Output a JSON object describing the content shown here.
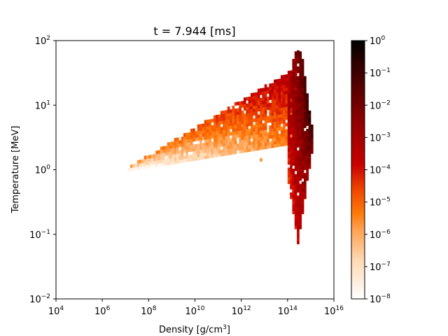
{
  "chart_data": {
    "type": "heatmap",
    "title": "t = 7.944 [ms]",
    "xlabel": "Density [g/cm",
    "xlabel_sup": "3",
    "xlabel_end": "]",
    "ylabel": "Temperature [MeV]",
    "x_scale": "log",
    "y_scale": "log",
    "xlim": [
      10000,
      10000000000000000
    ],
    "ylim": [
      0.01,
      100
    ],
    "x_ticks": [
      {
        "base": "10",
        "exp": "4",
        "value": 10000
      },
      {
        "base": "10",
        "exp": "6",
        "value": 1000000
      },
      {
        "base": "10",
        "exp": "8",
        "value": 100000000
      },
      {
        "base": "10",
        "exp": "10",
        "value": 10000000000
      },
      {
        "base": "10",
        "exp": "12",
        "value": 1000000000000
      },
      {
        "base": "10",
        "exp": "14",
        "value": 100000000000000
      },
      {
        "base": "10",
        "exp": "16",
        "value": 10000000000000000
      }
    ],
    "y_ticks": [
      {
        "base": "10",
        "exp": "−2",
        "value": 0.01
      },
      {
        "base": "10",
        "exp": "−1",
        "value": 0.1
      },
      {
        "base": "10",
        "exp": "0",
        "value": 1
      },
      {
        "base": "10",
        "exp": "1",
        "value": 10
      },
      {
        "base": "10",
        "exp": "2",
        "value": 100
      }
    ],
    "colorbar": {
      "scale": "log",
      "range": [
        1e-08,
        1
      ],
      "colormap": "gist_heat_r",
      "ticks": [
        {
          "base": "10",
          "exp": "−8",
          "value": 1e-08
        },
        {
          "base": "10",
          "exp": "−7",
          "value": 1e-07
        },
        {
          "base": "10",
          "exp": "−6",
          "value": 1e-06
        },
        {
          "base": "10",
          "exp": "−5",
          "value": 1e-05
        },
        {
          "base": "10",
          "exp": "−4",
          "value": 0.0001
        },
        {
          "base": "10",
          "exp": "−3",
          "value": 0.001
        },
        {
          "base": "10",
          "exp": "−2",
          "value": 0.01
        },
        {
          "base": "10",
          "exp": "−1",
          "value": 0.1
        },
        {
          "base": "10",
          "exp": "0",
          "value": 1
        }
      ]
    },
    "regions": [
      {
        "name": "main-band",
        "log_density_range": [
          7.0,
          14.3
        ],
        "log_temperature_low": [
          -0.03,
          0.4
        ],
        "log_temperature_high": [
          0.0,
          1.55
        ],
        "log_value_low": -7.9,
        "log_value_high": -3.2
      },
      {
        "name": "dense-spike",
        "log_density_range": [
          14.0,
          15.0
        ],
        "log_temperature_low": [
          -1.15,
          0.0
        ],
        "log_temperature_high": [
          1.3,
          1.83
        ],
        "log_value_low": -4.5,
        "log_value_high": -0.6
      },
      {
        "name": "isolated-pixel",
        "log_density": 12.8,
        "log_temperature": 0.13,
        "log_value": -5.7
      }
    ]
  }
}
